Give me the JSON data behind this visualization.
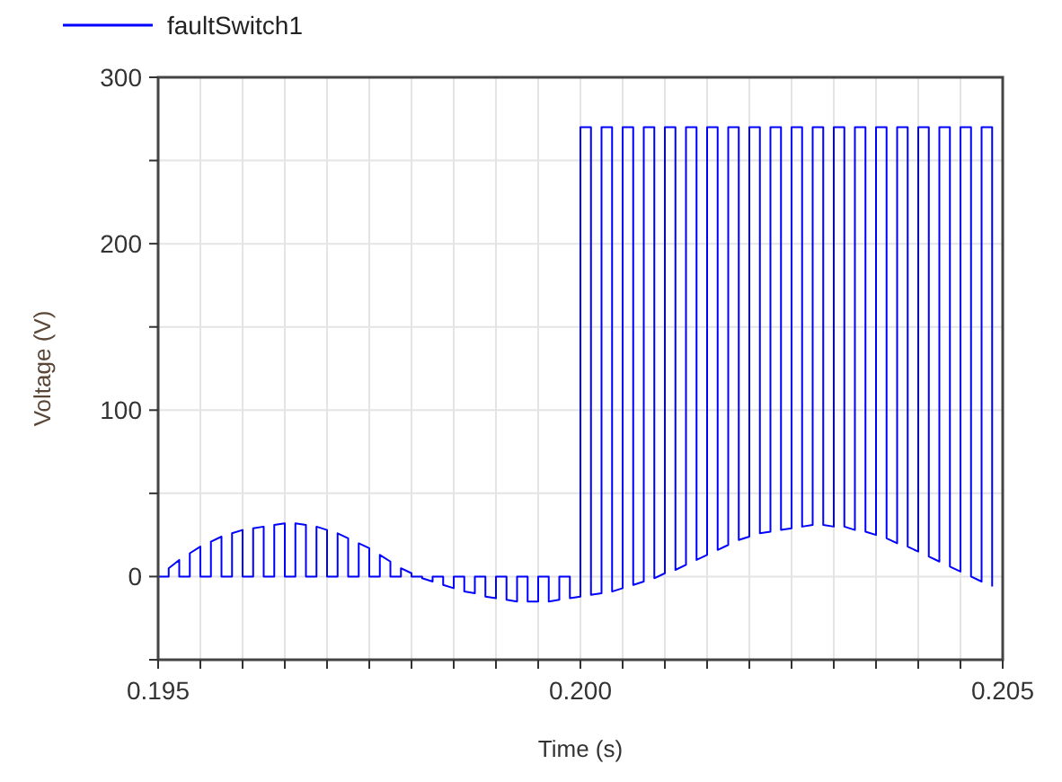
{
  "chart_data": {
    "type": "line",
    "xlabel": "Time (s)",
    "ylabel": "Voltage (V)",
    "xlim": [
      0.195,
      0.205
    ],
    "ylim": [
      -50,
      300
    ],
    "xticks": [
      0.195,
      {
        "value": 0.1955,
        "label": null
      },
      {
        "value": 0.196,
        "label": null
      },
      {
        "value": 0.1965,
        "label": null
      },
      {
        "value": 0.197,
        "label": null
      },
      {
        "value": 0.1975,
        "label": null
      },
      {
        "value": 0.198,
        "label": null
      },
      {
        "value": 0.1985,
        "label": null
      },
      {
        "value": 0.199,
        "label": null
      },
      {
        "value": 0.1995,
        "label": null
      },
      {
        "value": 0.2,
        "label": "0.200"
      },
      {
        "value": 0.2005,
        "label": null
      },
      {
        "value": 0.201,
        "label": null
      },
      {
        "value": 0.2015,
        "label": null
      },
      {
        "value": 0.202,
        "label": null
      },
      {
        "value": 0.2025,
        "label": null
      },
      {
        "value": 0.203,
        "label": null
      },
      {
        "value": 0.2035,
        "label": null
      },
      {
        "value": 0.204,
        "label": null
      },
      {
        "value": 0.2045,
        "label": null
      },
      0.205
    ],
    "yticks": [
      {
        "value": -50,
        "label": null
      },
      0,
      {
        "value": 50,
        "label": null
      },
      100,
      {
        "value": 150,
        "label": null
      },
      200,
      {
        "value": 250,
        "label": null
      },
      300
    ],
    "grid": true,
    "legend": "top left",
    "line_style": "solid",
    "marker": "none",
    "series": [
      {
        "name": "faultSwitch1",
        "color": "#0000ff",
        "x": [
          0.195,
          0.195,
          0.195125,
          0.195125,
          0.19525,
          0.19525,
          0.195375,
          0.195375,
          0.1955,
          0.1955,
          0.195625,
          0.195625,
          0.19575,
          0.19575,
          0.195875,
          0.195875,
          0.196,
          0.196,
          0.196125,
          0.196125,
          0.19625,
          0.19625,
          0.196375,
          0.196375,
          0.1965,
          0.1965,
          0.196625,
          0.196625,
          0.19675,
          0.19675,
          0.196875,
          0.196875,
          0.197,
          0.197,
          0.197125,
          0.197125,
          0.19725,
          0.19725,
          0.197375,
          0.197375,
          0.1975,
          0.1975,
          0.197625,
          0.197625,
          0.19775,
          0.19775,
          0.197875,
          0.197875,
          0.198,
          0.198,
          0.198125,
          0.198125,
          0.19825,
          0.19825,
          0.198375,
          0.198375,
          0.1985,
          0.1985,
          0.198625,
          0.198625,
          0.19875,
          0.19875,
          0.198875,
          0.198875,
          0.199,
          0.199,
          0.199125,
          0.199125,
          0.19925,
          0.19925,
          0.199375,
          0.199375,
          0.1995,
          0.1995,
          0.199625,
          0.199625,
          0.19975,
          0.19975,
          0.199875,
          0.199875,
          0.2,
          0.2,
          0.200125,
          0.200125,
          0.20025,
          0.20025,
          0.200375,
          0.200375,
          0.2005,
          0.2005,
          0.200625,
          0.200625,
          0.20075,
          0.20075,
          0.200875,
          0.200875,
          0.201,
          0.201,
          0.201125,
          0.201125,
          0.20125,
          0.20125,
          0.201375,
          0.201375,
          0.2015,
          0.2015,
          0.201625,
          0.201625,
          0.20175,
          0.20175,
          0.201875,
          0.201875,
          0.202,
          0.202,
          0.202125,
          0.202125,
          0.20225,
          0.20225,
          0.202375,
          0.202375,
          0.2025,
          0.2025,
          0.202625,
          0.202625,
          0.20275,
          0.20275,
          0.202875,
          0.202875,
          0.203,
          0.203,
          0.203125,
          0.203125,
          0.20325,
          0.20325,
          0.203375,
          0.203375,
          0.2035,
          0.2035,
          0.203625,
          0.203625,
          0.20375,
          0.20375,
          0.203875,
          0.203875,
          0.204,
          0.204,
          0.204125,
          0.204125,
          0.20425,
          0.20425,
          0.204375,
          0.204375,
          0.2045,
          0.2045,
          0.204625,
          0.204625,
          0.20475,
          0.20475,
          0.204875,
          0.204875
        ],
        "values": [
          0,
          0,
          0,
          5,
          10,
          0,
          0,
          14,
          18,
          0,
          0,
          21,
          24,
          0,
          0,
          26,
          28,
          0,
          0,
          29,
          30,
          0,
          0,
          31,
          32,
          0,
          0,
          32,
          31,
          0,
          0,
          30,
          28,
          0,
          0,
          26,
          23,
          0,
          0,
          20,
          17,
          0,
          0,
          13,
          9,
          0,
          0,
          5,
          2,
          0,
          0,
          -1,
          -3,
          0,
          0,
          -5,
          -7,
          0,
          0,
          -9,
          -10,
          0,
          0,
          -12,
          -13,
          0,
          0,
          -14,
          -15,
          0,
          0,
          -15,
          -15,
          0,
          0,
          -15,
          -14,
          0,
          0,
          -13,
          -12,
          270,
          270,
          -11,
          -10,
          270,
          270,
          -9,
          -7,
          270,
          270,
          -5,
          -3,
          270,
          270,
          -1,
          2,
          270,
          270,
          4,
          7,
          270,
          270,
          10,
          13,
          270,
          270,
          16,
          19,
          270,
          270,
          22,
          24,
          270,
          270,
          26,
          27,
          270,
          270,
          28,
          29,
          270,
          270,
          30,
          31,
          270,
          270,
          31,
          30,
          270,
          270,
          30,
          28,
          270,
          270,
          27,
          25,
          270,
          270,
          23,
          20,
          270,
          270,
          18,
          15,
          270,
          270,
          12,
          9,
          270,
          270,
          6,
          3,
          270,
          270,
          0,
          -3,
          270,
          270,
          -6
        ]
      }
    ]
  }
}
